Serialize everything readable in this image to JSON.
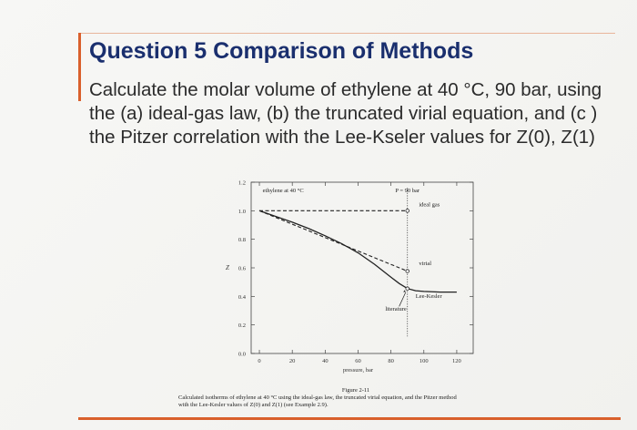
{
  "slide": {
    "title": "Question 5 Comparison of Methods",
    "body_lines": [
      "Calculate the molar volume of ethylene at 40 °C, 90 bar, using",
      "the (a) ideal-gas law, (b) the truncated virial equation, and (c )",
      "the Pitzer correlation with the Lee-Kseler values for Z(0), Z(1)"
    ],
    "figure_number": "Figure 2-11",
    "caption_line1": "Calculated isotherms of ethylene at 40 °C using the ideal-gas law, the truncated virial equation, and the Pitzer method",
    "caption_line2": "with the Lee-Kesler values of Z(0) and Z(1) (see Example 2.9)."
  },
  "chart_data": {
    "type": "line",
    "xlabel": "pressure, bar",
    "ylabel": "Z",
    "xlim": [
      -5,
      130
    ],
    "ylim": [
      0,
      1.2
    ],
    "x_ticks": [
      0,
      20,
      40,
      60,
      80,
      100,
      120
    ],
    "y_ticks": [
      0.0,
      0.2,
      0.4,
      0.6,
      0.8,
      1.0,
      1.2
    ],
    "y_tick_labels": [
      "0.0",
      "0.2",
      "0.4",
      "0.6",
      "0.8",
      "1.0",
      "1.2"
    ],
    "grid": false,
    "annotations": {
      "isotherm": "ethylene at 40 °C",
      "pressure_line": "P = 90 bar",
      "ideal": "ideal gas",
      "virial": "virial",
      "lee_kesler": "Lee-Kesler",
      "literature": "literature"
    },
    "series": [
      {
        "name": "ideal gas",
        "style": "dashed",
        "x": [
          0,
          90
        ],
        "y": [
          1.0,
          1.0
        ]
      },
      {
        "name": "virial",
        "style": "dashed",
        "x": [
          0,
          10,
          20,
          30,
          40,
          50,
          60,
          70,
          80,
          90
        ],
        "y": [
          1.0,
          0.953,
          0.906,
          0.859,
          0.812,
          0.765,
          0.718,
          0.671,
          0.624,
          0.577
        ]
      },
      {
        "name": "Lee-Kesler",
        "style": "solid",
        "x": [
          0,
          10,
          20,
          30,
          40,
          50,
          60,
          70,
          80,
          85,
          90,
          95,
          100,
          110,
          120
        ],
        "y": [
          1.0,
          0.96,
          0.92,
          0.875,
          0.825,
          0.77,
          0.705,
          0.625,
          0.535,
          0.49,
          0.455,
          0.44,
          0.435,
          0.43,
          0.43
        ]
      }
    ],
    "points": [
      {
        "label": "ideal gas",
        "x": 90,
        "y": 1.0
      },
      {
        "label": "virial",
        "x": 90,
        "y": 0.577
      },
      {
        "label": "Lee-Kesler",
        "x": 90,
        "y": 0.455
      }
    ],
    "literature_point": {
      "x": 90,
      "y": 0.455
    }
  }
}
